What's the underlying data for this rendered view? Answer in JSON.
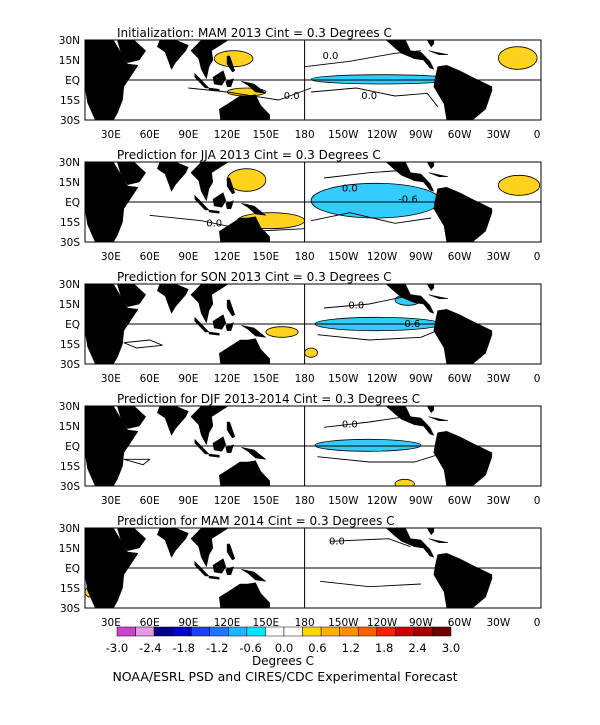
{
  "chart_data": [
    {
      "type": "heatmap",
      "title": "Initialization: MAM 2013  Cint = 0.3 Degrees C",
      "lat_ticks": [
        "30N",
        "15N",
        "EQ",
        "15S",
        "30S"
      ],
      "lon_ticks": [
        "30E",
        "60E",
        "90E",
        "120E",
        "150E",
        "180",
        "150W",
        "120W",
        "90W",
        "60W",
        "30W",
        "0"
      ],
      "contour_labels": [
        "0.0",
        "0.0",
        "0.0"
      ],
      "anomalies": [
        {
          "sign": "cool",
          "lon": [
            185,
            295
          ],
          "lat": [
            -3,
            4
          ]
        },
        {
          "sign": "warm",
          "lon": [
            330,
            360
          ],
          "lat": [
            8,
            25
          ]
        },
        {
          "sign": "warm",
          "lon": [
            120,
            150
          ],
          "lat": [
            -12,
            -6
          ]
        },
        {
          "sign": "warm",
          "lon": [
            110,
            140
          ],
          "lat": [
            10,
            22
          ]
        }
      ]
    },
    {
      "type": "heatmap",
      "title": "Prediction for JJA 2013  Cint = 0.3 Degrees C",
      "lat_ticks": [
        "30N",
        "15N",
        "EQ",
        "15S",
        "30S"
      ],
      "lon_ticks": [
        "30E",
        "60E",
        "90E",
        "120E",
        "150E",
        "180",
        "150W",
        "120W",
        "90W",
        "60W",
        "30W",
        "0"
      ],
      "contour_labels": [
        "0.0",
        "-0.6",
        "0.0"
      ],
      "anomalies": [
        {
          "sign": "cool",
          "lon": [
            185,
            285
          ],
          "lat": [
            -12,
            14
          ]
        },
        {
          "sign": "warm",
          "lon": [
            128,
            180
          ],
          "lat": [
            -20,
            -8
          ]
        },
        {
          "sign": "warm",
          "lon": [
            330,
            362
          ],
          "lat": [
            5,
            20
          ]
        },
        {
          "sign": "warm",
          "lon": [
            120,
            150
          ],
          "lat": [
            8,
            25
          ]
        }
      ]
    },
    {
      "type": "heatmap",
      "title": "Prediction for SON 2013  Cint = 0.3 Degrees C",
      "lat_ticks": [
        "30N",
        "15N",
        "EQ",
        "15S",
        "30S"
      ],
      "lon_ticks": [
        "30E",
        "60E",
        "90E",
        "120E",
        "150E",
        "180",
        "150W",
        "120W",
        "90W",
        "60W",
        "30W",
        "0"
      ],
      "contour_labels": [
        "0.0",
        "-0.6"
      ],
      "anomalies": [
        {
          "sign": "cool",
          "lon": [
            188,
            285
          ],
          "lat": [
            -5,
            5
          ]
        },
        {
          "sign": "cool",
          "lon": [
            250,
            270
          ],
          "lat": [
            14,
            22
          ]
        },
        {
          "sign": "warm",
          "lon": [
            150,
            175
          ],
          "lat": [
            -10,
            -2
          ]
        },
        {
          "sign": "warm",
          "lon": [
            180,
            190
          ],
          "lat": [
            -25,
            -18
          ]
        }
      ]
    },
    {
      "type": "heatmap",
      "title": "Prediction for DJF 2013-2014  Cint = 0.3 Degrees C",
      "lat_ticks": [
        "30N",
        "15N",
        "EQ",
        "15S",
        "30S"
      ],
      "lon_ticks": [
        "30E",
        "60E",
        "90E",
        "120E",
        "150E",
        "180",
        "150W",
        "120W",
        "90W",
        "60W",
        "30W",
        "0"
      ],
      "contour_labels": [
        "0.0"
      ],
      "anomalies": [
        {
          "sign": "cool",
          "lon": [
            188,
            270
          ],
          "lat": [
            -4,
            5
          ]
        },
        {
          "sign": "warm",
          "lon": [
            250,
            265
          ],
          "lat": [
            -32,
            -25
          ]
        }
      ]
    },
    {
      "type": "heatmap",
      "title": "Prediction for MAM 2014  Cint = 0.3 Degrees C",
      "lat_ticks": [
        "30N",
        "15N",
        "EQ",
        "15S",
        "30S"
      ],
      "lon_ticks": [
        "30E",
        "60E",
        "90E",
        "120E",
        "150E",
        "180",
        "150W",
        "120W",
        "90W",
        "60W",
        "30W",
        "0"
      ],
      "contour_labels": [
        "0.0"
      ],
      "anomalies": [
        {
          "sign": "warm",
          "lon": [
            10,
            20
          ],
          "lat": [
            -22,
            -14
          ]
        }
      ]
    }
  ],
  "colorbar": {
    "ticks": [
      "-3.0",
      "-2.4",
      "-1.8",
      "-1.2",
      "-0.6",
      "0.0",
      "0.6",
      "1.2",
      "1.8",
      "2.4",
      "3.0"
    ],
    "colors": [
      "#cc44cc",
      "#e79ae7",
      "#00008b",
      "#0000cd",
      "#1e40ff",
      "#1e78ff",
      "#1eb4ff",
      "#00e5ff",
      "#ffffff",
      "#ffffff",
      "#ffd700",
      "#ffb000",
      "#ff9000",
      "#ff6000",
      "#ff2000",
      "#d00000",
      "#a00000",
      "#700000"
    ],
    "label": "Degrees C"
  },
  "footer": "NOAA/ESRL PSD and CIRES/CDC Experimental Forecast",
  "palette": {
    "warm": "#ffd21e",
    "cool": "#33ccff",
    "land": "#000000"
  }
}
